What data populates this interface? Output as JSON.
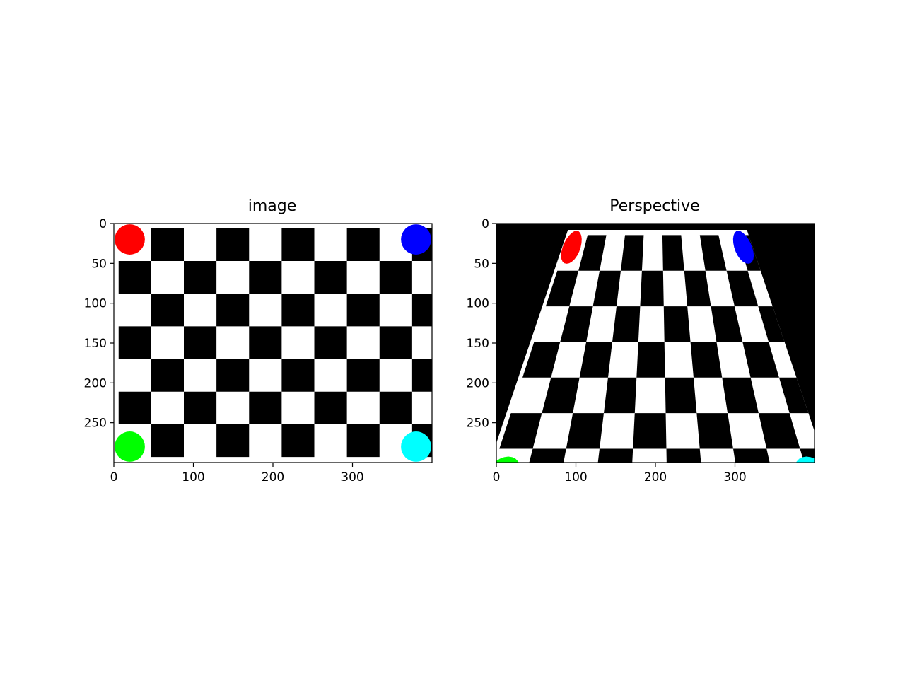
{
  "figure": {
    "background": "#ffffff"
  },
  "chart_data": [
    {
      "type": "image",
      "title": "image",
      "xlabel": "",
      "ylabel": "",
      "xlim": [
        0,
        400
      ],
      "ylim": [
        300,
        0
      ],
      "xticks": [
        0,
        100,
        200,
        300
      ],
      "yticks": [
        0,
        50,
        100,
        150,
        200,
        250
      ],
      "grid": false,
      "checkerboard": {
        "square_size": 41,
        "origin": [
          6,
          6
        ],
        "rows": 7,
        "cols": 10,
        "dark_color": "#000000",
        "light_color": "#ffffff"
      },
      "markers": [
        {
          "name": "red-dot",
          "x": 20,
          "y": 20,
          "r": 19,
          "color": "#ff0000"
        },
        {
          "name": "blue-dot",
          "x": 380,
          "y": 20,
          "r": 19,
          "color": "#0000ff"
        },
        {
          "name": "green-dot",
          "x": 20,
          "y": 280,
          "r": 19,
          "color": "#00ff00"
        },
        {
          "name": "cyan-dot",
          "x": 380,
          "y": 280,
          "r": 19,
          "color": "#00ffff"
        }
      ]
    },
    {
      "type": "image",
      "title": "Perspective",
      "xlabel": "",
      "ylabel": "",
      "xlim": [
        0,
        400
      ],
      "ylim": [
        300,
        0
      ],
      "xticks": [
        0,
        100,
        200,
        300
      ],
      "yticks": [
        0,
        50,
        100,
        150,
        200,
        250
      ],
      "grid": false,
      "background_color": "#000000",
      "quad": {
        "top_left": [
          90,
          8
        ],
        "top_right": [
          315,
          8
        ],
        "bottom_left": [
          -20,
          335
        ],
        "bottom_right": [
          425,
          335
        ]
      },
      "checkerboard": {
        "square_size": 41,
        "origin": [
          6,
          6
        ],
        "rows": 7,
        "cols": 10,
        "dark_color": "#000000",
        "light_color": "#ffffff"
      },
      "markers": [
        {
          "name": "red-dot",
          "x": 20,
          "y": 20,
          "r": 19,
          "color": "#ff0000"
        },
        {
          "name": "blue-dot",
          "x": 380,
          "y": 20,
          "r": 19,
          "color": "#0000ff"
        },
        {
          "name": "green-dot",
          "x": 20,
          "y": 280,
          "r": 19,
          "color": "#00ff00"
        },
        {
          "name": "cyan-dot",
          "x": 380,
          "y": 280,
          "r": 19,
          "color": "#00ffff"
        }
      ]
    }
  ]
}
